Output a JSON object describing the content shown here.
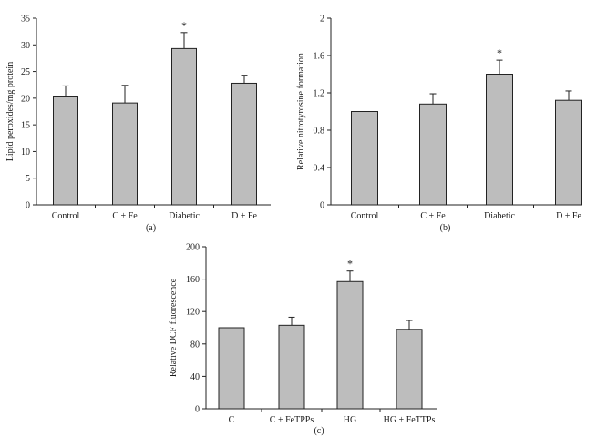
{
  "chart_data": [
    {
      "type": "bar",
      "panel_label": "(a)",
      "categories": [
        "Control",
        "C + Fe",
        "Diabetic",
        "D + Fe"
      ],
      "values": [
        20.4,
        19.1,
        29.3,
        22.8
      ],
      "errors": [
        1.9,
        3.3,
        3.0,
        1.5
      ],
      "significance": [
        "",
        "",
        "*",
        ""
      ],
      "ylabel": "Lipid peroxides/mg protein",
      "xlabel": "",
      "ylim": [
        0,
        35
      ],
      "yticks": [
        0,
        5,
        10,
        15,
        20,
        25,
        30,
        35
      ],
      "bar_color": "#bdbdbd",
      "grid": false
    },
    {
      "type": "bar",
      "panel_label": "(b)",
      "categories": [
        "Control",
        "C + Fe",
        "Diabetic",
        "D + Fe"
      ],
      "values": [
        1.0,
        1.08,
        1.4,
        1.12
      ],
      "errors": [
        0.0,
        0.11,
        0.15,
        0.1
      ],
      "significance": [
        "",
        "",
        "*",
        ""
      ],
      "ylabel": "Relative nitrotyrosine formation",
      "xlabel": "",
      "ylim": [
        0,
        2.0
      ],
      "yticks": [
        "0",
        "0.4",
        "0.8",
        "1.2",
        "1.6",
        "2"
      ],
      "bar_color": "#bdbdbd",
      "grid": false
    },
    {
      "type": "bar",
      "panel_label": "(c)",
      "categories": [
        "C",
        "C + FeTPPs",
        "HG",
        "HG + FeTTPs"
      ],
      "values": [
        100,
        103,
        157,
        98
      ],
      "errors": [
        0,
        10,
        13,
        11
      ],
      "significance": [
        "",
        "",
        "*",
        ""
      ],
      "ylabel": "Relative DCF fluorescence",
      "xlabel": "",
      "ylim": [
        0,
        200
      ],
      "yticks": [
        0,
        40,
        80,
        120,
        160,
        200
      ],
      "bar_color": "#bdbdbd",
      "grid": false
    }
  ]
}
